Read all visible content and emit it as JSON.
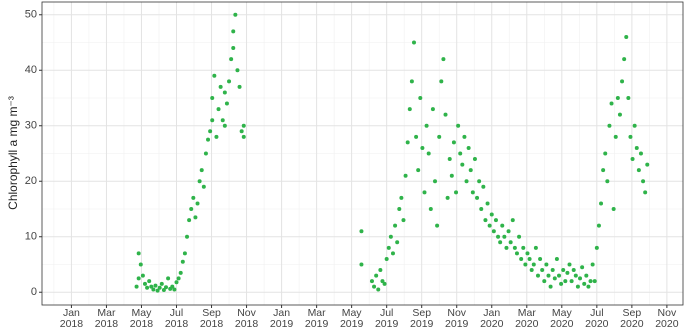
{
  "chart_data": {
    "type": "scatter",
    "y_label": "Chlorophyll a mg m⁻³",
    "color": "#2fb34a",
    "grid": true,
    "xlim": [
      2017.86,
      2020.91
    ],
    "ylim": [
      -2.3,
      52.3
    ],
    "yticks": [
      0,
      10,
      20,
      30,
      40,
      50
    ],
    "yminorticks": [
      5,
      15,
      25,
      35,
      45
    ],
    "xticks": [
      {
        "value": 2018.0,
        "label": "Jan 2018"
      },
      {
        "value": 2018.1667,
        "label": "Mar 2018"
      },
      {
        "value": 2018.3333,
        "label": "May 2018"
      },
      {
        "value": 2018.5,
        "label": "Jul 2018"
      },
      {
        "value": 2018.6667,
        "label": "Sep 2018"
      },
      {
        "value": 2018.8333,
        "label": "Nov 2018"
      },
      {
        "value": 2019.0,
        "label": "Jan 2019"
      },
      {
        "value": 2019.1667,
        "label": "Mar 2019"
      },
      {
        "value": 2019.3333,
        "label": "May 2019"
      },
      {
        "value": 2019.5,
        "label": "Jul 2019"
      },
      {
        "value": 2019.6667,
        "label": "Sep 2019"
      },
      {
        "value": 2019.8333,
        "label": "Nov 2019"
      },
      {
        "value": 2020.0,
        "label": "Jan 2020"
      },
      {
        "value": 2020.1667,
        "label": "Mar 2020"
      },
      {
        "value": 2020.3333,
        "label": "May 2020"
      },
      {
        "value": 2020.5,
        "label": "Jul 2020"
      },
      {
        "value": 2020.6667,
        "label": "Sep 2020"
      },
      {
        "value": 2020.8333,
        "label": "Nov 2020"
      }
    ],
    "xminorticks": [
      2017.9167,
      2018.0833,
      2018.25,
      2018.4167,
      2018.5833,
      2018.75,
      2018.9167,
      2019.0833,
      2019.25,
      2019.4167,
      2019.5833,
      2019.75,
      2019.9167,
      2020.0833,
      2020.25,
      2020.4167,
      2020.5833,
      2020.75
    ],
    "x": [
      2018.31,
      2018.32,
      2018.32,
      2018.33,
      2018.34,
      2018.35,
      2018.36,
      2018.37,
      2018.38,
      2018.39,
      2018.4,
      2018.41,
      2018.42,
      2018.43,
      2018.44,
      2018.45,
      2018.46,
      2018.47,
      2018.48,
      2018.49,
      2018.5,
      2018.51,
      2018.52,
      2018.53,
      2018.54,
      2018.55,
      2018.56,
      2018.57,
      2018.58,
      2018.59,
      2018.6,
      2018.61,
      2018.62,
      2018.63,
      2018.64,
      2018.65,
      2018.66,
      2018.67,
      2018.67,
      2018.68,
      2018.69,
      2018.7,
      2018.71,
      2018.72,
      2018.73,
      2018.73,
      2018.74,
      2018.75,
      2018.76,
      2018.77,
      2018.77,
      2018.78,
      2018.79,
      2018.8,
      2018.81,
      2018.82,
      2018.82,
      2019.38,
      2019.38,
      2019.43,
      2019.44,
      2019.45,
      2019.46,
      2019.47,
      2019.48,
      2019.49,
      2019.5,
      2019.51,
      2019.52,
      2019.53,
      2019.54,
      2019.55,
      2019.56,
      2019.57,
      2019.58,
      2019.59,
      2019.6,
      2019.61,
      2019.62,
      2019.63,
      2019.64,
      2019.65,
      2019.66,
      2019.67,
      2019.68,
      2019.69,
      2019.7,
      2019.71,
      2019.72,
      2019.73,
      2019.74,
      2019.75,
      2019.76,
      2019.77,
      2019.78,
      2019.79,
      2019.8,
      2019.81,
      2019.82,
      2019.83,
      2019.84,
      2019.85,
      2019.86,
      2019.87,
      2019.88,
      2019.89,
      2019.9,
      2019.91,
      2019.92,
      2019.93,
      2019.94,
      2019.95,
      2019.96,
      2019.97,
      2019.98,
      2019.99,
      2020.0,
      2020.01,
      2020.02,
      2020.03,
      2020.04,
      2020.05,
      2020.06,
      2020.07,
      2020.08,
      2020.09,
      2020.1,
      2020.11,
      2020.12,
      2020.13,
      2020.14,
      2020.15,
      2020.16,
      2020.17,
      2020.18,
      2020.19,
      2020.2,
      2020.21,
      2020.22,
      2020.23,
      2020.24,
      2020.25,
      2020.26,
      2020.27,
      2020.28,
      2020.29,
      2020.3,
      2020.31,
      2020.32,
      2020.33,
      2020.34,
      2020.35,
      2020.36,
      2020.37,
      2020.38,
      2020.39,
      2020.4,
      2020.41,
      2020.42,
      2020.43,
      2020.44,
      2020.45,
      2020.46,
      2020.47,
      2020.48,
      2020.49,
      2020.5,
      2020.51,
      2020.52,
      2020.53,
      2020.54,
      2020.55,
      2020.56,
      2020.57,
      2020.58,
      2020.59,
      2020.6,
      2020.61,
      2020.62,
      2020.63,
      2020.64,
      2020.65,
      2020.66,
      2020.67,
      2020.68,
      2020.69,
      2020.7,
      2020.71,
      2020.72,
      2020.73,
      2020.74
    ],
    "values": [
      1,
      2.5,
      7,
      5,
      3,
      1.5,
      0.8,
      2,
      1,
      0.5,
      1.2,
      0.3,
      0.8,
      1.5,
      0.4,
      0.9,
      2.5,
      0.6,
      1,
      0.5,
      1.8,
      2.5,
      3.5,
      5.5,
      7,
      10,
      13,
      15,
      17,
      13.5,
      16,
      20,
      22,
      19,
      25,
      27.5,
      29,
      35,
      31,
      39,
      28,
      33,
      37,
      31,
      30,
      36,
      34,
      38,
      42,
      47,
      44,
      50,
      40,
      37,
      29,
      28,
      30,
      11,
      5,
      2,
      1,
      3,
      0.5,
      4,
      2,
      1.5,
      6,
      8,
      10,
      7,
      12,
      9,
      15,
      17,
      13,
      21,
      27,
      33,
      38,
      45,
      28,
      22,
      35,
      26,
      18,
      30,
      25,
      15,
      33,
      20,
      12,
      28,
      38,
      42,
      32,
      17,
      24,
      21,
      27,
      18,
      30,
      25,
      23,
      28,
      20,
      26,
      22,
      18,
      24,
      17,
      20,
      15,
      19,
      13,
      16,
      12,
      14,
      11,
      13,
      10,
      9,
      12,
      10,
      8,
      11,
      9,
      13,
      8,
      7,
      10,
      6,
      8,
      5,
      7,
      6,
      4,
      5,
      8,
      3,
      6,
      4,
      2,
      5,
      3,
      1,
      4,
      2.5,
      6,
      3,
      1.5,
      4,
      2,
      3.5,
      5,
      2,
      4,
      3,
      1,
      2.5,
      4.5,
      1.5,
      3,
      1,
      2,
      5,
      2,
      8,
      12,
      16,
      22,
      25,
      20,
      30,
      34,
      15,
      28,
      35,
      32,
      38,
      42,
      46,
      35,
      28,
      24,
      30,
      26,
      22,
      25,
      20,
      18,
      23
    ]
  }
}
